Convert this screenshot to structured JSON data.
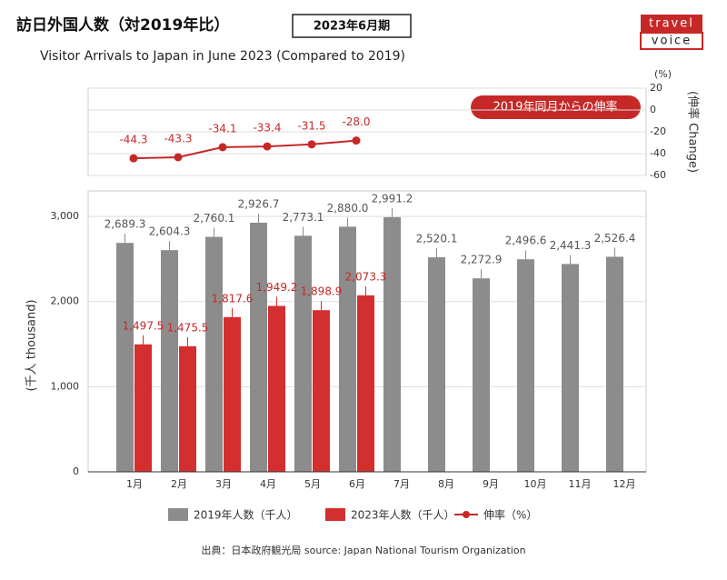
{
  "header": {
    "title": "訪日外国人数（対2019年比）",
    "badge": "2023年6月期",
    "subtitle": "Visitor Arrivals to Japan in June 2023 (Compared to 2019)",
    "logo_top": "travel",
    "logo_bottom": "voice"
  },
  "chart_data": [
    {
      "type": "line",
      "unit": "(%)",
      "ylabel": "(伸率 Change)",
      "annotation": "2019年同月からの伸率",
      "ylim": [
        -60,
        20
      ],
      "yticks": [
        20,
        0,
        -20,
        -40,
        -60
      ],
      "grid": true,
      "series": [
        {
          "name": "伸率（%）",
          "color": "#c62828",
          "values": [
            -44.3,
            -43.3,
            -34.1,
            -33.4,
            -31.5,
            -28.0,
            null,
            null,
            null,
            null,
            null,
            null
          ],
          "value_labels": [
            "-44.3",
            "-43.3",
            "-34.1",
            "-33.4",
            "-31.5",
            "-28.0",
            null,
            null,
            null,
            null,
            null,
            null
          ]
        }
      ]
    },
    {
      "type": "bar",
      "ylabel": "(千人 thousand)",
      "categories": [
        "1月",
        "2月",
        "3月",
        "4月",
        "5月",
        "6月",
        "7月",
        "8月",
        "9月",
        "10月",
        "11月",
        "12月"
      ],
      "ylim": [
        0,
        3300
      ],
      "yticks": [
        0,
        {
          "value": 1000,
          "label": "1,000"
        },
        {
          "value": 2000,
          "label": "2,000"
        },
        {
          "value": 3000,
          "label": "3,000"
        }
      ],
      "grid": true,
      "series": [
        {
          "name": "2019年人数（千人）",
          "color": "#8c8c8c",
          "values": [
            2689.3,
            2604.3,
            2760.1,
            2926.7,
            2773.1,
            2880.0,
            2991.2,
            2520.1,
            2272.9,
            2496.6,
            2441.3,
            2526.4
          ],
          "value_labels": [
            "2,689.3",
            "2,604.3",
            "2,760.1",
            "2,926.7",
            "2,773.1",
            "2,880.0",
            "2,991.2",
            "2,520.1",
            "2,272.9",
            "2,496.6",
            "2,441.3",
            "2,526.4"
          ]
        },
        {
          "name": "2023年人数（千人）",
          "color": "#d32f2f",
          "values": [
            1497.5,
            1475.5,
            1817.6,
            1949.2,
            1898.9,
            2073.3,
            null,
            null,
            null,
            null,
            null,
            null
          ],
          "value_labels": [
            "1,497.5",
            "1,475.5",
            "1,817.6",
            "1,949.2",
            "1,898.9",
            "2,073.3",
            null,
            null,
            null,
            null,
            null,
            null
          ]
        }
      ]
    }
  ],
  "source": "出典：日本政府観光局  source: Japan National Tourism Organization"
}
